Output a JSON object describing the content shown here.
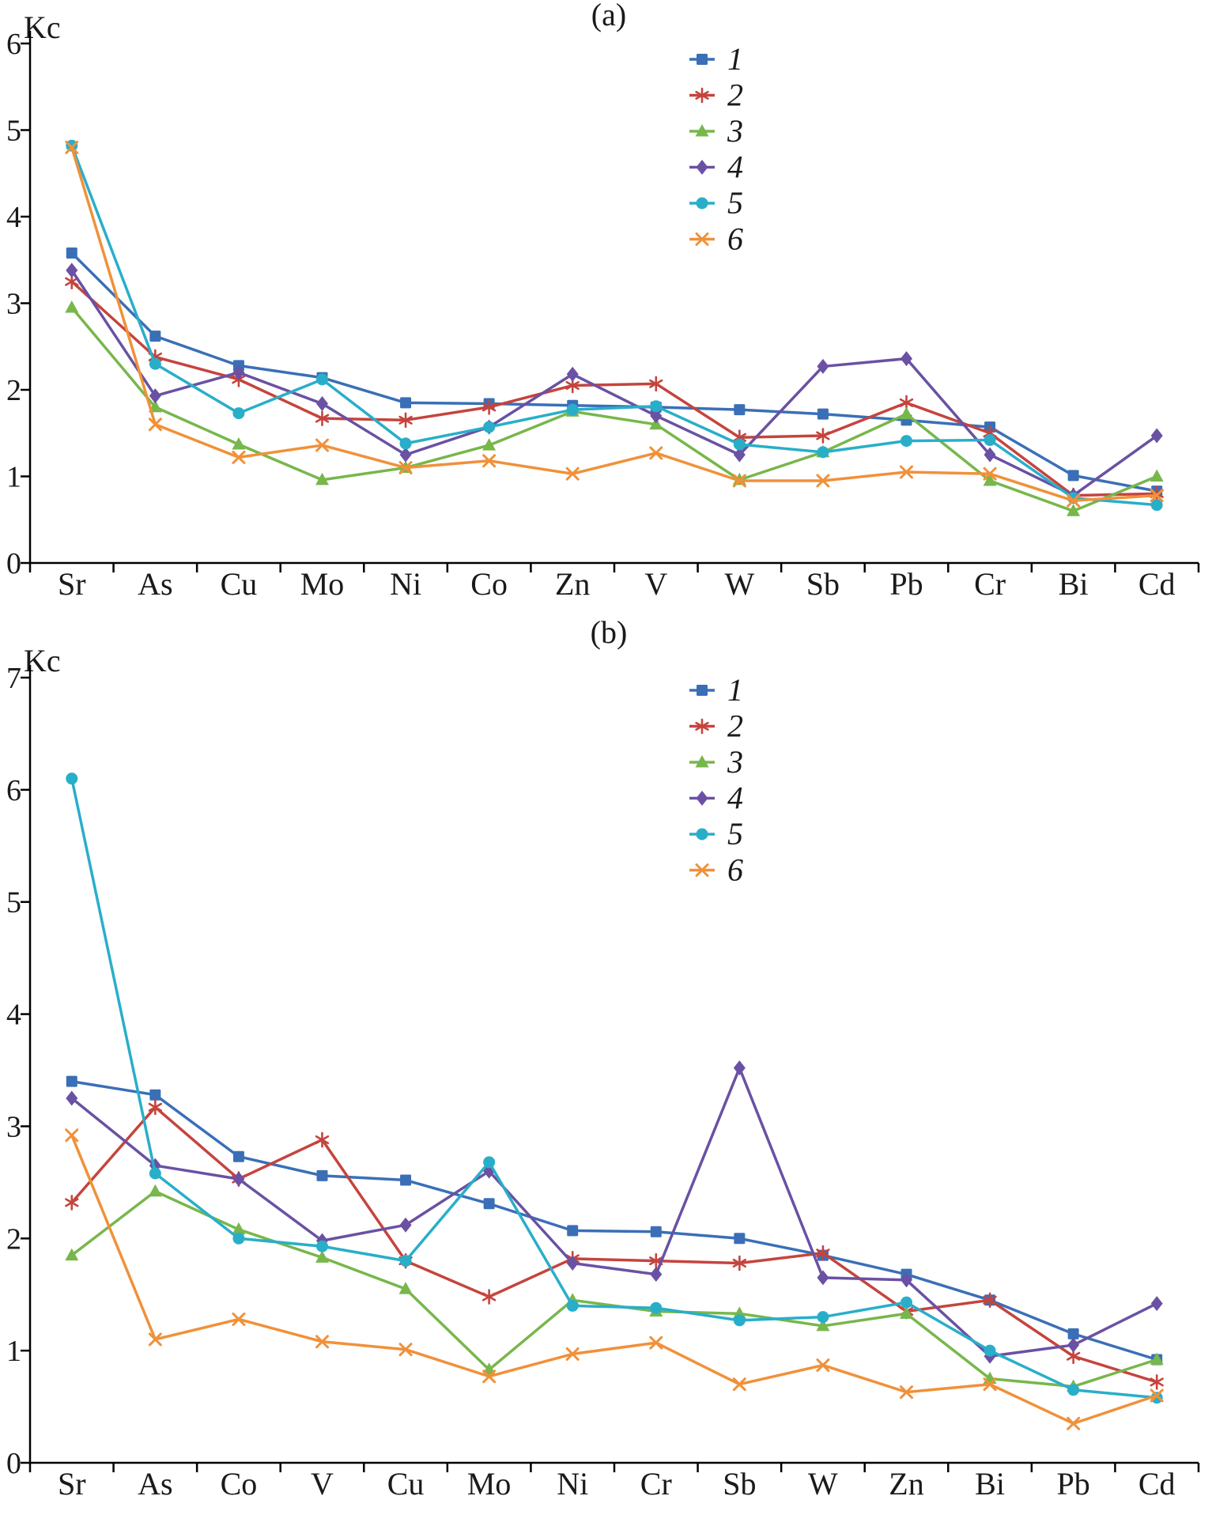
{
  "chart_data": [
    {
      "type": "line",
      "panel": "a",
      "title": "(a)",
      "ylabel": "Kc",
      "xlabel": "",
      "ylim": [
        0,
        6
      ],
      "yticks": [
        0,
        1,
        2,
        3,
        4,
        5,
        6
      ],
      "grid": false,
      "legend_position": "top-right",
      "categories": [
        "Sr",
        "As",
        "Cu",
        "Mo",
        "Ni",
        "Co",
        "Zn",
        "V",
        "W",
        "Sb",
        "Pb",
        "Cr",
        "Bi",
        "Cd"
      ],
      "series": [
        {
          "name": "1",
          "color": "#3A6FB7",
          "marker": "square",
          "values": [
            3.58,
            2.62,
            2.28,
            2.14,
            1.85,
            1.84,
            1.82,
            1.8,
            1.77,
            1.72,
            1.65,
            1.57,
            1.01,
            0.83
          ]
        },
        {
          "name": "2",
          "color": "#C5443E",
          "marker": "asterisk",
          "values": [
            3.25,
            2.38,
            2.12,
            1.67,
            1.65,
            1.8,
            2.05,
            2.07,
            1.45,
            1.47,
            1.85,
            1.5,
            0.78,
            0.8
          ]
        },
        {
          "name": "3",
          "color": "#77B74B",
          "marker": "triangle",
          "values": [
            2.95,
            1.8,
            1.37,
            0.96,
            1.1,
            1.36,
            1.75,
            1.6,
            0.96,
            1.28,
            1.72,
            0.95,
            0.6,
            1.0
          ]
        },
        {
          "name": "4",
          "color": "#6A51A3",
          "marker": "diamond",
          "values": [
            3.38,
            1.93,
            2.2,
            1.84,
            1.25,
            1.57,
            2.18,
            1.7,
            1.25,
            2.27,
            2.36,
            1.25,
            0.78,
            1.47
          ]
        },
        {
          "name": "5",
          "color": "#29AEC9",
          "marker": "circle",
          "values": [
            4.82,
            2.3,
            1.73,
            2.12,
            1.38,
            1.57,
            1.77,
            1.81,
            1.37,
            1.28,
            1.41,
            1.42,
            0.75,
            0.67
          ]
        },
        {
          "name": "6",
          "color": "#F0913A",
          "marker": "x",
          "values": [
            4.8,
            1.6,
            1.22,
            1.36,
            1.1,
            1.18,
            1.03,
            1.27,
            0.95,
            0.95,
            1.05,
            1.03,
            0.72,
            0.78
          ]
        }
      ]
    },
    {
      "type": "line",
      "panel": "b",
      "title": "(b)",
      "ylabel": "Kc",
      "xlabel": "",
      "ylim": [
        0,
        7
      ],
      "yticks": [
        0,
        1,
        2,
        3,
        4,
        5,
        6,
        7
      ],
      "grid": false,
      "legend_position": "top-right",
      "categories": [
        "Sr",
        "As",
        "Co",
        "V",
        "Cu",
        "Mo",
        "Ni",
        "Cr",
        "Sb",
        "W",
        "Zn",
        "Bi",
        "Pb",
        "Cd"
      ],
      "series": [
        {
          "name": "1",
          "color": "#3A6FB7",
          "marker": "square",
          "values": [
            3.4,
            3.28,
            2.73,
            2.56,
            2.52,
            2.31,
            2.07,
            2.06,
            2.0,
            1.85,
            1.68,
            1.45,
            1.15,
            0.92
          ]
        },
        {
          "name": "2",
          "color": "#C5443E",
          "marker": "asterisk",
          "values": [
            2.32,
            3.17,
            2.53,
            2.88,
            1.8,
            1.48,
            1.82,
            1.8,
            1.78,
            1.87,
            1.35,
            1.45,
            0.95,
            0.72
          ]
        },
        {
          "name": "3",
          "color": "#77B74B",
          "marker": "triangle",
          "values": [
            1.85,
            2.42,
            2.08,
            1.83,
            1.55,
            0.83,
            1.45,
            1.35,
            1.33,
            1.22,
            1.33,
            0.75,
            0.68,
            0.92
          ]
        },
        {
          "name": "4",
          "color": "#6A51A3",
          "marker": "diamond",
          "values": [
            3.25,
            2.65,
            2.53,
            1.98,
            2.12,
            2.6,
            1.78,
            1.68,
            3.52,
            1.65,
            1.63,
            0.95,
            1.05,
            1.42
          ]
        },
        {
          "name": "5",
          "color": "#29AEC9",
          "marker": "circle",
          "values": [
            6.1,
            2.58,
            2.0,
            1.93,
            1.8,
            2.68,
            1.4,
            1.38,
            1.27,
            1.3,
            1.43,
            1.0,
            0.65,
            0.58
          ]
        },
        {
          "name": "6",
          "color": "#F0913A",
          "marker": "x",
          "values": [
            2.92,
            1.1,
            1.28,
            1.08,
            1.01,
            0.77,
            0.97,
            1.07,
            0.7,
            0.87,
            0.63,
            0.7,
            0.35,
            0.6
          ]
        }
      ]
    }
  ],
  "legend": {
    "items": [
      "1",
      "2",
      "3",
      "4",
      "5",
      "6"
    ]
  },
  "colors": {
    "axis": "#000000",
    "background": "#ffffff"
  }
}
